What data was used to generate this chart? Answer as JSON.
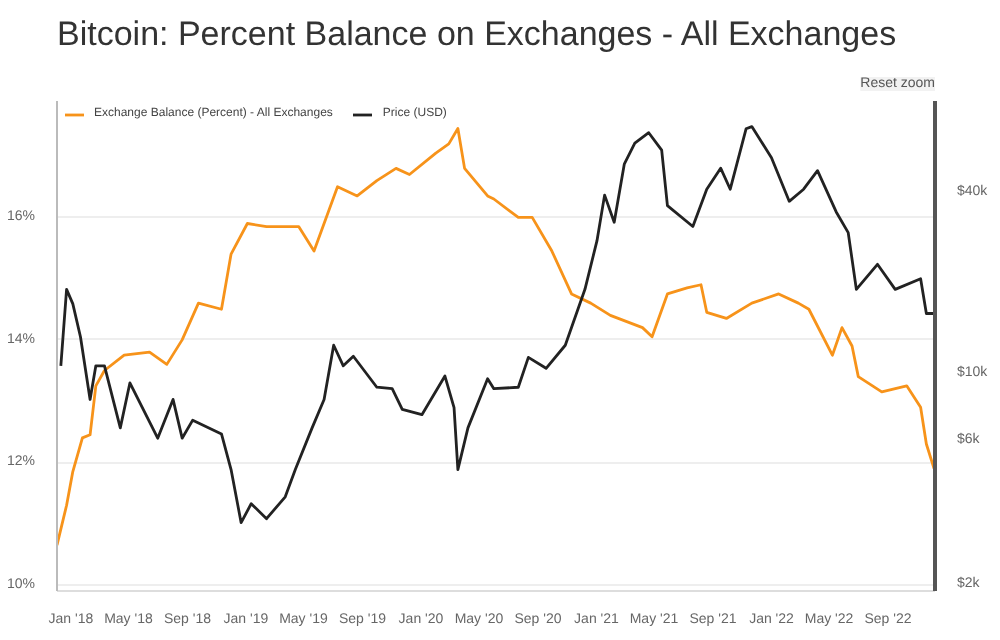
{
  "chart_data": {
    "type": "line",
    "title": "Bitcoin: Percent Balance on Exchanges - All Exchanges",
    "legend": "top left",
    "grid": "y",
    "log": "y2",
    "marker": "none",
    "xlim": [
      "2017-12-03",
      "2022-12-08"
    ],
    "xticks": [
      {
        "value": "2018-01-01",
        "label": "Jan '18"
      },
      {
        "value": "2018-05-01",
        "label": "May '18"
      },
      {
        "value": "2018-09-01",
        "label": "Sep '18"
      },
      {
        "value": "2019-01-01",
        "label": "Jan '19"
      },
      {
        "value": "2019-05-01",
        "label": "May '19"
      },
      {
        "value": "2019-09-01",
        "label": "Sep '19"
      },
      {
        "value": "2020-01-01",
        "label": "Jan '20"
      },
      {
        "value": "2020-05-01",
        "label": "May '20"
      },
      {
        "value": "2020-09-01",
        "label": "Sep '20"
      },
      {
        "value": "2021-01-01",
        "label": "Jan '21"
      },
      {
        "value": "2021-05-01",
        "label": "May '21"
      },
      {
        "value": "2021-09-01",
        "label": "Sep '21"
      },
      {
        "value": "2022-01-01",
        "label": "Jan '22"
      },
      {
        "value": "2022-05-01",
        "label": "May '22"
      },
      {
        "value": "2022-09-01",
        "label": "Sep '22"
      }
    ],
    "ylim": [
      9.9,
      17.9
    ],
    "yticks": [
      {
        "value": 10,
        "label": "10%"
      },
      {
        "value": 12,
        "label": "12%"
      },
      {
        "value": 14,
        "label": "14%"
      },
      {
        "value": 16,
        "label": "16%"
      }
    ],
    "y2lim": [
      1900,
      80000
    ],
    "y2ticks": [
      {
        "value": 2000,
        "label": "$2k"
      },
      {
        "value": 6000,
        "label": "$6k"
      },
      {
        "value": 10000,
        "label": "$10k"
      },
      {
        "value": 40000,
        "label": "$40k"
      }
    ],
    "annotations": [
      "Reset zoom"
    ],
    "series": [
      {
        "name": "Exchange Balance (Percent) - All Exchanges",
        "color": "#f7931a",
        "x": [
          "2017-12-03",
          "2017-12-23",
          "2018-01-05",
          "2018-01-25",
          "2018-02-10",
          "2018-02-22",
          "2018-03-12",
          "2018-04-22",
          "2018-06-14",
          "2018-07-20",
          "2018-08-21",
          "2018-09-24",
          "2018-11-11",
          "2018-12-01",
          "2019-01-04",
          "2019-02-13",
          "2019-04-21",
          "2019-05-23",
          "2019-07-11",
          "2019-08-21",
          "2019-10-01",
          "2019-11-10",
          "2019-12-08",
          "2020-02-01",
          "2020-02-28",
          "2020-03-18",
          "2020-04-01",
          "2020-05-19",
          "2020-06-01",
          "2020-07-22",
          "2020-08-20",
          "2020-09-30",
          "2020-11-10",
          "2020-12-20",
          "2021-01-30",
          "2021-04-07",
          "2021-04-27",
          "2021-05-29",
          "2021-07-09",
          "2021-08-07",
          "2021-08-19",
          "2021-09-29",
          "2021-11-21",
          "2022-01-16",
          "2022-02-26",
          "2022-03-20",
          "2022-05-08",
          "2022-05-28",
          "2022-06-18",
          "2022-07-01",
          "2022-08-19",
          "2022-10-10",
          "2022-11-08",
          "2022-11-20",
          "2022-12-06"
        ],
        "values": [
          10.65,
          11.3,
          11.85,
          12.4,
          12.45,
          13.25,
          13.5,
          13.75,
          13.8,
          13.6,
          14.0,
          14.6,
          14.5,
          15.4,
          15.9,
          15.85,
          15.85,
          15.45,
          16.5,
          16.35,
          16.6,
          16.8,
          16.7,
          17.05,
          17.2,
          17.45,
          16.8,
          16.35,
          16.3,
          16.0,
          16.0,
          15.45,
          14.75,
          14.6,
          14.4,
          14.2,
          14.05,
          14.75,
          14.85,
          14.9,
          14.45,
          14.35,
          14.6,
          14.75,
          14.6,
          14.5,
          13.75,
          14.2,
          13.9,
          13.4,
          13.15,
          13.25,
          12.9,
          12.3,
          11.9
        ]
      },
      {
        "name": "Price (USD)",
        "color": "#222222",
        "axis": "y2",
        "x": [
          "2017-12-11",
          "2017-12-23",
          "2018-01-05",
          "2018-01-21",
          "2018-02-10",
          "2018-02-22",
          "2018-03-12",
          "2018-04-14",
          "2018-05-04",
          "2018-07-01",
          "2018-08-02",
          "2018-08-21",
          "2018-09-12",
          "2018-11-11",
          "2018-12-01",
          "2018-12-22",
          "2019-01-12",
          "2019-02-13",
          "2019-03-24",
          "2019-04-14",
          "2019-05-19",
          "2019-06-13",
          "2019-07-03",
          "2019-07-23",
          "2019-08-13",
          "2019-10-01",
          "2019-11-02",
          "2019-11-23",
          "2020-01-03",
          "2020-02-20",
          "2020-03-10",
          "2020-03-18",
          "2020-04-08",
          "2020-05-19",
          "2020-06-01",
          "2020-07-22",
          "2020-08-12",
          "2020-09-18",
          "2020-10-28",
          "2020-12-08",
          "2021-01-02",
          "2021-01-18",
          "2021-02-07",
          "2021-02-28",
          "2021-03-22",
          "2021-04-20",
          "2021-05-17",
          "2021-05-29",
          "2021-07-21",
          "2021-08-19",
          "2021-09-17",
          "2021-10-07",
          "2021-11-09",
          "2021-11-21",
          "2022-01-01",
          "2022-02-07",
          "2022-03-09",
          "2022-04-07",
          "2022-05-16",
          "2022-06-10",
          "2022-06-27",
          "2022-08-10",
          "2022-09-16",
          "2022-11-08",
          "2022-11-20",
          "2022-12-06"
        ],
        "values": [
          10600,
          19000,
          17000,
          13200,
          8200,
          10600,
          10600,
          6600,
          9300,
          6100,
          8200,
          6100,
          7000,
          6300,
          4800,
          3200,
          3700,
          3300,
          3900,
          4800,
          6600,
          8200,
          12400,
          10600,
          11400,
          9000,
          8900,
          7600,
          7300,
          9800,
          7700,
          4800,
          6600,
          9600,
          8900,
          9000,
          11300,
          10400,
          12400,
          19000,
          27500,
          39000,
          31700,
          49400,
          58000,
          62800,
          55000,
          36000,
          30700,
          40800,
          47900,
          40800,
          64700,
          65800,
          51900,
          37200,
          40800,
          47000,
          34300,
          29300,
          19000,
          23000,
          19000,
          20600,
          15800,
          15800
        ]
      }
    ]
  }
}
